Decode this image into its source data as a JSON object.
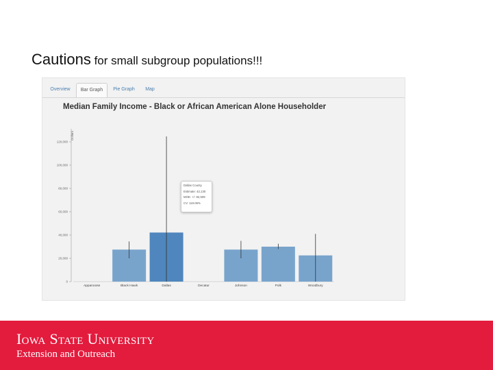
{
  "slide": {
    "title_big": "Cautions",
    "title_rest": " for small subgroup populations!!!"
  },
  "tabs": [
    {
      "label": "Overview",
      "active": false
    },
    {
      "label": "Bar Graph",
      "active": true
    },
    {
      "label": "Pie Graph",
      "active": false
    },
    {
      "label": "Map",
      "active": false
    }
  ],
  "tooltip": {
    "line1": "Dallas County",
    "line2": "Estimate: 42,130",
    "line3": "MOE: +/- 82,509",
    "line4": "CV: 119.06%"
  },
  "footer": {
    "university": "Iowa State University",
    "subtitle": "Extension and Outreach"
  },
  "colors": {
    "bar": "#78a4cc",
    "bar_highlight": "#4f86bd",
    "footer": "#e31b3d"
  },
  "chart_data": {
    "type": "bar",
    "title": "Median Family Income - Black or African American Alone Householder",
    "ylabel": "Dollars",
    "categories": [
      "Appanoose",
      "Black Hawk",
      "Dallas",
      "Decatur",
      "Johnson",
      "Polk",
      "Woodbury"
    ],
    "values": [
      null,
      27500,
      42130,
      null,
      27500,
      30000,
      22500
    ],
    "error_low": [
      null,
      20000,
      0,
      null,
      20000,
      28000,
      0
    ],
    "error_high": [
      null,
      34500,
      124639,
      null,
      35000,
      32500,
      41000
    ],
    "highlight": "Dallas",
    "yticks": [
      0,
      20000,
      40000,
      60000,
      80000,
      100000,
      120000
    ],
    "ytick_labels": [
      "0",
      "20,000",
      "40,000",
      "60,000",
      "80,000",
      "100,000",
      "120,000"
    ],
    "ylim": [
      0,
      130000
    ],
    "grid": false
  }
}
